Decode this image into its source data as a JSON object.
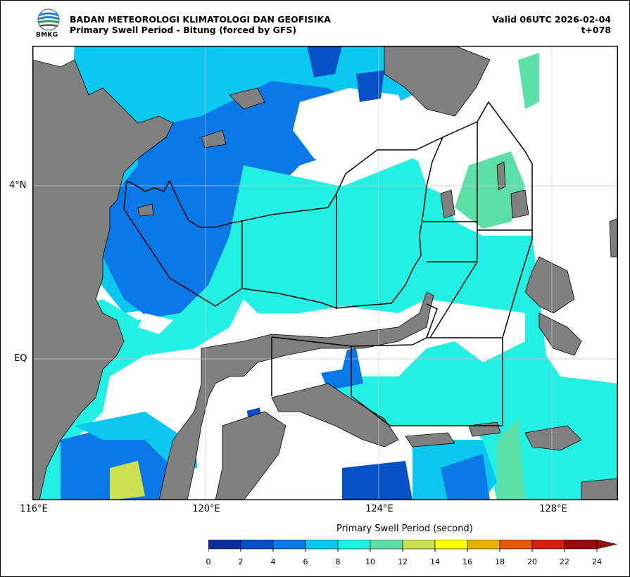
{
  "header": {
    "org_name": "BADAN METEOROLOGI KLIMATOLOGI DAN GEOFISIKA",
    "product_title": "Primary Swell Period - Bitung (forced by GFS)",
    "valid_time": "Valid 06UTC 2026-02-04",
    "lead_time": "t+078",
    "logo_text": "BMKG"
  },
  "map": {
    "lon_range": [
      116,
      129.5
    ],
    "lat_range": [
      -3.3,
      7.4
    ],
    "x_ticks": [
      "116°E",
      "120°E",
      "124°E",
      "128°E"
    ],
    "y_ticks": [
      "4°N",
      "EQ"
    ],
    "land_color": "#808080",
    "grid": true
  },
  "colorbar": {
    "title": "Primary Swell Period (second)",
    "tick_labels": [
      "0",
      "2",
      "4",
      "6",
      "8",
      "10",
      "12",
      "14",
      "16",
      "18",
      "20",
      "22",
      "24"
    ],
    "colors": [
      "#0a2ea0",
      "#0450c4",
      "#0a78e6",
      "#0ac8f0",
      "#22f0e2",
      "#5ce0a8",
      "#cce050",
      "#ffff00",
      "#e8b000",
      "#e85800",
      "#d81c0c",
      "#980c0c"
    ],
    "extend": "max"
  }
}
